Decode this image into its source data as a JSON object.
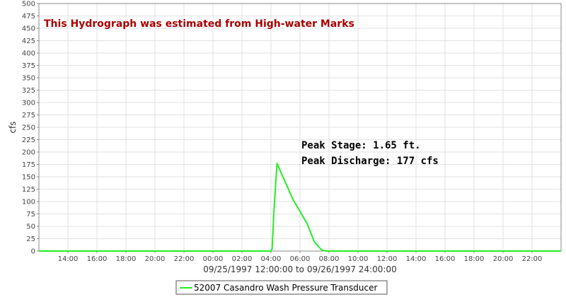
{
  "chart_data": {
    "type": "line",
    "title": "",
    "annotation_banner": "This Hydrograph was estimated from High-water Marks",
    "ylabel": "cfs",
    "xlabel": "09/25/1997 12:00:00 to 09/26/1997 24:00:00",
    "x_range": [
      "1997-09-25 12:00",
      "1997-09-27 00:00"
    ],
    "ylim": [
      0,
      500
    ],
    "y_ticks": [
      "0",
      "25",
      "50",
      "75",
      "100",
      "125",
      "150",
      "175",
      "200",
      "225",
      "250",
      "275",
      "300",
      "325",
      "350",
      "375",
      "400",
      "425",
      "450",
      "475",
      "500"
    ],
    "x_ticks": [
      {
        "t": "1997-09-25 14:00",
        "label": "14:00"
      },
      {
        "t": "1997-09-25 16:00",
        "label": "16:00"
      },
      {
        "t": "1997-09-25 18:00",
        "label": "18:00"
      },
      {
        "t": "1997-09-25 20:00",
        "label": "20:00"
      },
      {
        "t": "1997-09-25 22:00",
        "label": "22:00"
      },
      {
        "t": "1997-09-26 00:00",
        "label": "00:00"
      },
      {
        "t": "1997-09-26 02:00",
        "label": "02:00"
      },
      {
        "t": "1997-09-26 04:00",
        "label": "04:00"
      },
      {
        "t": "1997-09-26 06:00",
        "label": "06:00"
      },
      {
        "t": "1997-09-26 08:00",
        "label": "08:00"
      },
      {
        "t": "1997-09-26 10:00",
        "label": "10:00"
      },
      {
        "t": "1997-09-26 12:00",
        "label": "12:00"
      },
      {
        "t": "1997-09-26 14:00",
        "label": "14:00"
      },
      {
        "t": "1997-09-26 16:00",
        "label": "16:00"
      },
      {
        "t": "1997-09-26 18:00",
        "label": "18:00"
      },
      {
        "t": "1997-09-26 20:00",
        "label": "20:00"
      },
      {
        "t": "1997-09-26 22:00",
        "label": "22:00"
      }
    ],
    "series": [
      {
        "name": "52007 Casandro Wash Pressure Transducer",
        "color": "#22ee22",
        "x": [
          "1997-09-25 12:00",
          "1997-09-26 04:00",
          "1997-09-26 04:05",
          "1997-09-26 04:12",
          "1997-09-26 04:25",
          "1997-09-26 05:30",
          "1997-09-26 06:30",
          "1997-09-26 07:00",
          "1997-09-26 07:30",
          "1997-09-26 07:45",
          "1997-09-27 00:00"
        ],
        "y": [
          0,
          0,
          5,
          80,
          177,
          105,
          55,
          18,
          2,
          0,
          0
        ]
      }
    ],
    "annotations": [
      "Peak Stage: 1.65 ft.",
      "Peak Discharge: 177 cfs"
    ],
    "grid": true,
    "legend_position": "bottom-center"
  }
}
